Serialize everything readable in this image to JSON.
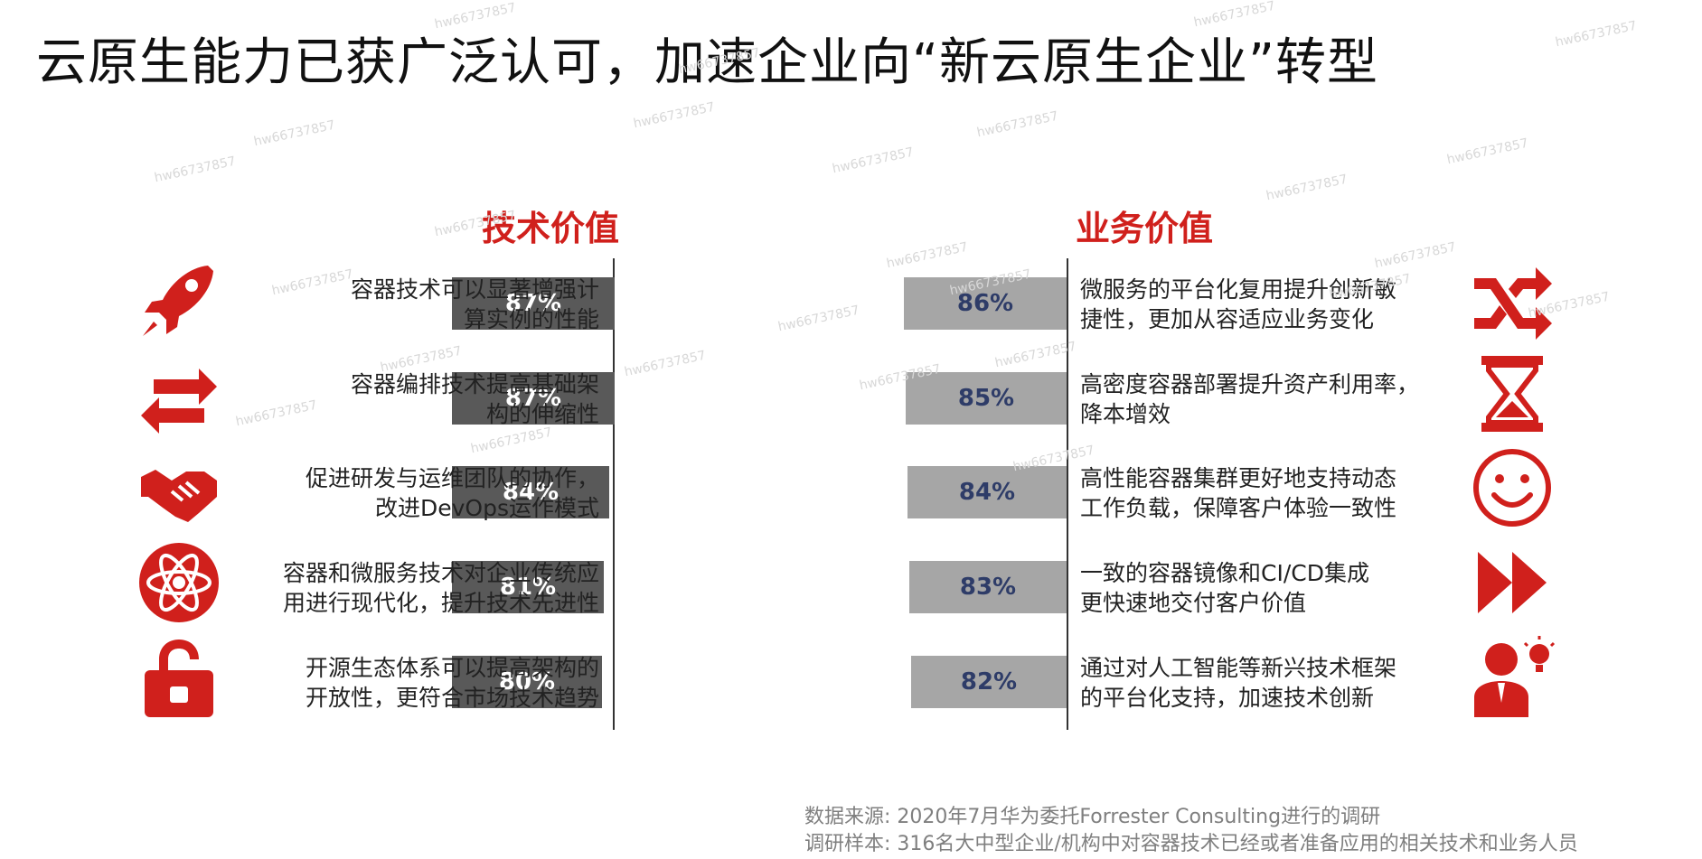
{
  "title": "云原生能力已获广泛认可，加速企业向“新云原生企业”转型",
  "watermark": "hw66737857",
  "colors": {
    "accent": "#d0201c",
    "tech_bar": "#595959",
    "biz_bar": "#a6a6a6",
    "biz_value": "#2e3c68"
  },
  "chart_data": [
    {
      "type": "bar",
      "orientation": "horizontal",
      "title": "技术价值",
      "categories": [
        "容器技术可以显著增强计算实例的性能",
        "容器编排技术提高基础架构的伸缩性",
        "促进研发与运维团队的协作，改进DevOps运作模式",
        "容器和微服务技术对企业传统应用进行现代化，提升技术先进性",
        "开源生态体系可以提高架构的开放性，更符合市场技术趋势"
      ],
      "label_lines": [
        [
          "容器技术可以显著增强计",
          "算实例的性能"
        ],
        [
          "容器编排技术提高基础架",
          "构的伸缩性"
        ],
        [
          "促进研发与运维团队的协作，",
          "改进DevOps运作模式"
        ],
        [
          "容器和微服务技术对企业传统应",
          "用进行现代化，提升技术先进性"
        ],
        [
          "开源生态体系可以提高架构的",
          "开放性，更符合市场技术趋势"
        ]
      ],
      "values": [
        87,
        87,
        84,
        81,
        80
      ],
      "value_labels": [
        "87%",
        "87%",
        "84%",
        "81%",
        "80%"
      ],
      "icons": [
        "rocket-icon",
        "swap-arrows-icon",
        "handshake-icon",
        "atom-icon",
        "unlocked-padlock-icon"
      ]
    },
    {
      "type": "bar",
      "orientation": "horizontal",
      "title": "业务价值",
      "categories": [
        "微服务的平台化复用提升创新敏捷性，更加从容适应业务变化",
        "高密度容器部署提升资产利用率，降本增效",
        "高性能容器集群更好地支持动态工作负载，保障客户体验一致性",
        "一致的容器镜像和CI/CD集成更快速地交付客户价值",
        "通过对人工智能等新兴技术框架的平台化支持，加速技术创新"
      ],
      "label_lines": [
        [
          "微服务的平台化复用提升创新敏",
          "捷性，更加从容适应业务变化"
        ],
        [
          "高密度容器部署提升资产利用率，",
          "降本增效"
        ],
        [
          "高性能容器集群更好地支持动态",
          "工作负载，保障客户体验一致性"
        ],
        [
          "一致的容器镜像和CI/CD集成",
          "更快速地交付客户价值"
        ],
        [
          "通过对人工智能等新兴技术框架",
          "的平台化支持，加速技术创新"
        ]
      ],
      "values": [
        86,
        85,
        84,
        83,
        82
      ],
      "value_labels": [
        "86%",
        "85%",
        "84%",
        "83%",
        "82%"
      ],
      "icons": [
        "shuffle-icon",
        "hourglass-icon",
        "smiley-face-icon",
        "fast-forward-icon",
        "person-idea-icon"
      ]
    }
  ],
  "footnotes": {
    "source": "数据来源: 2020年7月华为委托Forrester Consulting进行的调研",
    "sample": "调研样本: 316名大中型企业/机构中对容器技术已经或者准备应用的相关技术和业务人员"
  }
}
